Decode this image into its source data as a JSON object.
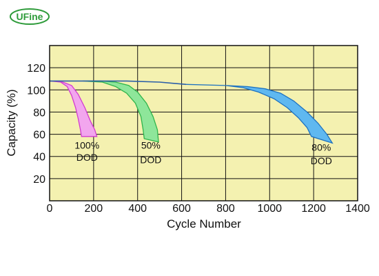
{
  "logo": {
    "text": "UFine",
    "color": "#2e9b3a"
  },
  "chart_data": {
    "type": "area",
    "xlabel": "Cycle Number",
    "ylabel": "Capacity (%)",
    "xlim": [
      0,
      1400
    ],
    "ylim": [
      0,
      140
    ],
    "xticks": [
      0,
      200,
      400,
      600,
      800,
      1000,
      1200,
      1400
    ],
    "yticks": [
      20,
      40,
      60,
      80,
      100,
      120
    ],
    "grid": true,
    "background": "#f4f1b0",
    "series": [
      {
        "fill": "#f2a6ee",
        "edge": "#d23ad0",
        "upper": [
          [
            0,
            108
          ],
          [
            60,
            107
          ],
          [
            100,
            104
          ],
          [
            130,
            96
          ],
          [
            160,
            84
          ],
          [
            185,
            72
          ],
          [
            205,
            64
          ],
          [
            215,
            58
          ]
        ],
        "lower": [
          [
            0,
            108
          ],
          [
            50,
            107
          ],
          [
            80,
            103
          ],
          [
            100,
            95
          ],
          [
            118,
            84
          ],
          [
            130,
            74
          ],
          [
            140,
            64
          ],
          [
            145,
            58
          ]
        ]
      },
      {
        "fill": "#8ee69a",
        "edge": "#2fb44a",
        "upper": [
          [
            230,
            108
          ],
          [
            300,
            107
          ],
          [
            360,
            104
          ],
          [
            400,
            98
          ],
          [
            440,
            88
          ],
          [
            470,
            76
          ],
          [
            490,
            64
          ],
          [
            495,
            53
          ]
        ],
        "lower": [
          [
            150,
            108
          ],
          [
            240,
            107
          ],
          [
            300,
            103
          ],
          [
            350,
            97
          ],
          [
            390,
            88
          ],
          [
            415,
            76
          ],
          [
            425,
            64
          ],
          [
            430,
            56
          ]
        ]
      },
      {
        "fill": "#5fb8f0",
        "edge": "#1e72c0",
        "upper": [
          [
            620,
            105
          ],
          [
            800,
            104
          ],
          [
            900,
            103
          ],
          [
            980,
            101
          ],
          [
            1050,
            97
          ],
          [
            1110,
            90
          ],
          [
            1170,
            80
          ],
          [
            1220,
            70
          ],
          [
            1260,
            60
          ],
          [
            1285,
            52
          ]
        ],
        "lower": [
          [
            620,
            105
          ],
          [
            800,
            104
          ],
          [
            880,
            102
          ],
          [
            950,
            98
          ],
          [
            1020,
            92
          ],
          [
            1080,
            84
          ],
          [
            1130,
            75
          ],
          [
            1170,
            66
          ],
          [
            1190,
            58
          ]
        ]
      }
    ],
    "flat": [
      [
        0,
        108
      ],
      [
        150,
        108
      ],
      [
        350,
        108
      ],
      [
        500,
        107
      ],
      [
        620,
        105
      ]
    ],
    "annotations": [
      {
        "line1": "100%",
        "line2": "DOD",
        "x": 170,
        "y1": 47,
        "y2": 36
      },
      {
        "line1": "50%",
        "line2": "DOD",
        "x": 460,
        "y1": 47,
        "y2": 34
      },
      {
        "line1": "80%",
        "line2": "DOD",
        "x": 1235,
        "y1": 45,
        "y2": 33
      }
    ]
  }
}
